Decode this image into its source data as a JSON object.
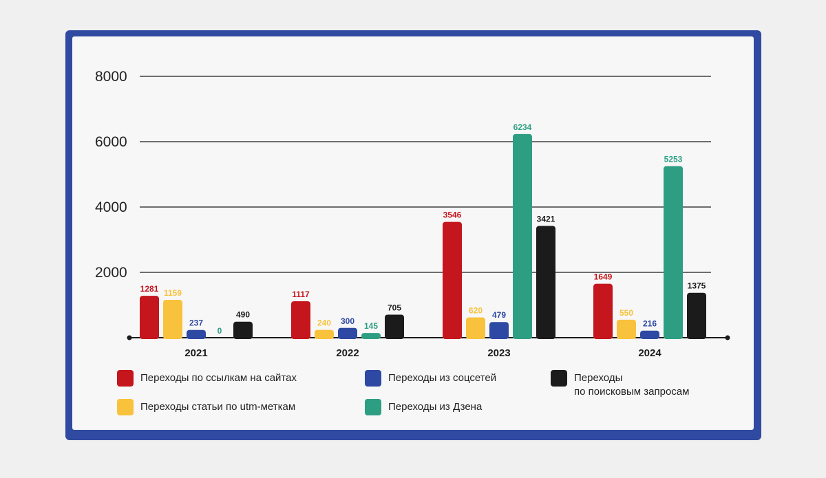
{
  "colors": {
    "red": "#c4161c",
    "yellow": "#f9c23c",
    "blue": "#2e49a3",
    "green": "#2e9e83",
    "black": "#1b1b1b",
    "frame": "#2f4aa0"
  },
  "chart_data": {
    "type": "bar",
    "title": "",
    "xlabel": "",
    "ylabel": "",
    "ylim": [
      0,
      8000
    ],
    "yticks": [
      "8000",
      "6000",
      "4000",
      "2000"
    ],
    "grid": true,
    "categories": [
      "2021",
      "2022",
      "2023",
      "2024"
    ],
    "series": [
      {
        "name": "Переходы по ссылкам на сайтах",
        "color": "red",
        "values": [
          1281,
          1117,
          3546,
          1649
        ],
        "labels": [
          "1281",
          "1117",
          "3546",
          "1649"
        ]
      },
      {
        "name": "Переходы статьи по utm-меткам",
        "color": "yellow",
        "values": [
          1159,
          240,
          620,
          550
        ],
        "labels": [
          "1159",
          "240",
          "620",
          "550"
        ]
      },
      {
        "name": "Переходы из соцсетей",
        "color": "blue",
        "values": [
          237,
          300,
          479,
          216
        ],
        "labels": [
          "237",
          "300",
          "479",
          "216"
        ]
      },
      {
        "name": "Переходы из Дзена",
        "color": "green",
        "values": [
          0,
          145,
          6234,
          5253
        ],
        "labels": [
          "0",
          "145",
          "6234",
          "5253"
        ]
      },
      {
        "name": "Переходы\nпо поисковым запросам",
        "color": "black",
        "values": [
          490,
          705,
          3421,
          1375
        ],
        "labels": [
          "490",
          "705",
          "3421",
          "1375"
        ]
      }
    ]
  }
}
